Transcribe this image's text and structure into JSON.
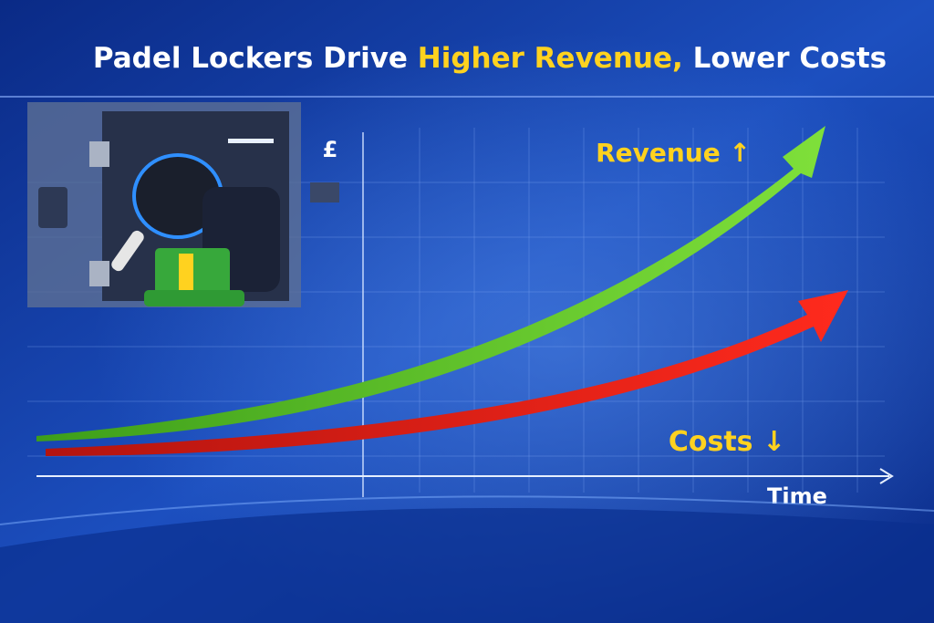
{
  "title": {
    "part1": "Padel Lockers Drive",
    "highlight": "Higher Revenue,",
    "part2": "Lower Costs"
  },
  "axis": {
    "y_label": "£",
    "x_label": "Time"
  },
  "annotations": {
    "revenue": "Revenue ↑",
    "costs": "Costs ↓"
  }
}
